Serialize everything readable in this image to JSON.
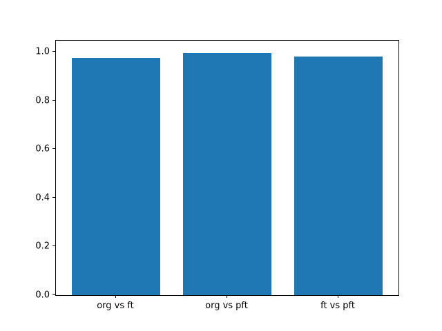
{
  "figure": {
    "background": "#ffffff",
    "frame_color": "#000000",
    "tick_color": "#000000",
    "label_color": "#000000"
  },
  "chart_data": {
    "type": "bar",
    "title": "",
    "xlabel": "",
    "ylabel": "",
    "categories": [
      "org vs ft",
      "org vs pft",
      "ft vs pft"
    ],
    "values": [
      0.975,
      0.995,
      0.981
    ],
    "bar_color": "#1f77b4",
    "bar_width": 0.8,
    "xlim": [
      -0.54,
      2.54
    ],
    "ylim": [
      0,
      1.045
    ],
    "yticks": [
      "0.0",
      "0.2",
      "0.4",
      "0.6",
      "0.8",
      "1.0"
    ],
    "ytick_values": [
      0.0,
      0.2,
      0.4,
      0.6,
      0.8,
      1.0
    ],
    "grid": false,
    "legend": null
  }
}
